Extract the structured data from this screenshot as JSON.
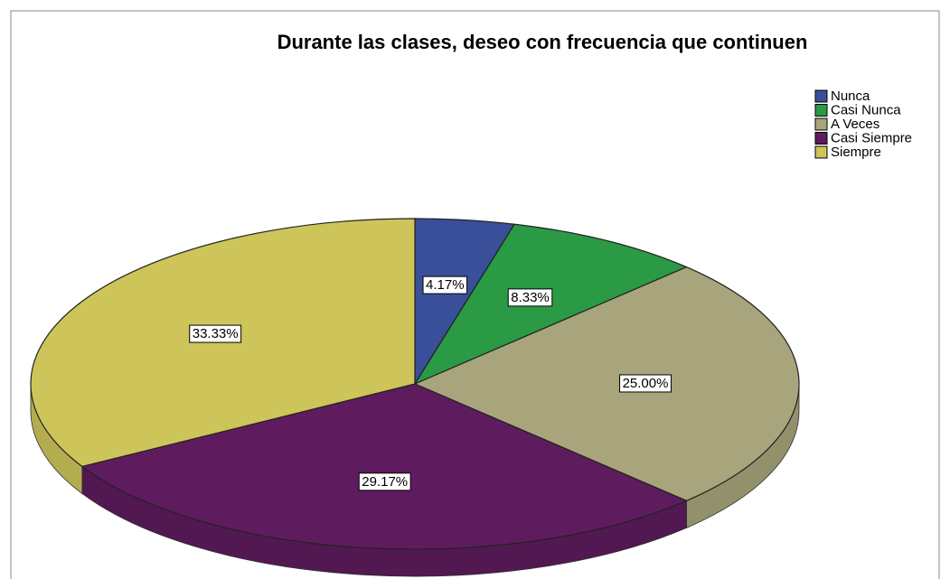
{
  "chart_data": {
    "type": "pie",
    "title": "Durante las clases, deseo con frecuencia que continuen",
    "categories": [
      "Nunca",
      "Casi Nunca",
      "A Veces",
      "Casi Siempre",
      "Siempre"
    ],
    "values": [
      4.17,
      8.33,
      25.0,
      29.17,
      33.33
    ],
    "value_labels": [
      "4.17%",
      "8.33%",
      "25.00%",
      "29.17%",
      "33.33%"
    ],
    "colors": [
      "#3a4f99",
      "#2a9a45",
      "#a8a47c",
      "#5e1c5e",
      "#cdc55a"
    ],
    "legend": "top-right"
  }
}
